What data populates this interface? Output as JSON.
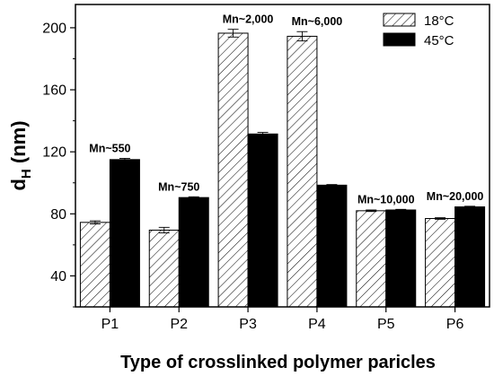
{
  "chart_data": {
    "type": "bar",
    "categories": [
      "P1",
      "P2",
      "P3",
      "P4",
      "P5",
      "P6"
    ],
    "series": [
      {
        "name": "18°C",
        "values": [
          74.5,
          69.5,
          196.5,
          194.5,
          82,
          77
        ],
        "errors": [
          1.0,
          1.8,
          2.5,
          3.0,
          0.5,
          0.5
        ],
        "pattern": "hatched"
      },
      {
        "name": "45°C",
        "values": [
          115,
          90.5,
          131.5,
          98.5,
          82.5,
          84.5
        ],
        "errors": [
          0.8,
          0.5,
          1.0,
          0.4,
          0.4,
          0.4
        ],
        "pattern": "solid"
      }
    ],
    "annotations": [
      "Mn~550",
      "Mn~750",
      "Mn~2,000",
      "Mn~6,000",
      "Mn~10,000",
      "Mn~20,000"
    ],
    "ylabel": "d",
    "ylabel_subscript": "H",
    "ylabel_unit": " (nm)",
    "xlabel": "Type of crosslinked polymer paricles",
    "ylim": [
      20,
      215
    ],
    "yticks": [
      40,
      80,
      120,
      160,
      200
    ],
    "legend_position": "top-right",
    "grid": false,
    "colors": {
      "solid_bar": "#000000",
      "hatch": "#000000",
      "background": "#ffffff"
    }
  }
}
